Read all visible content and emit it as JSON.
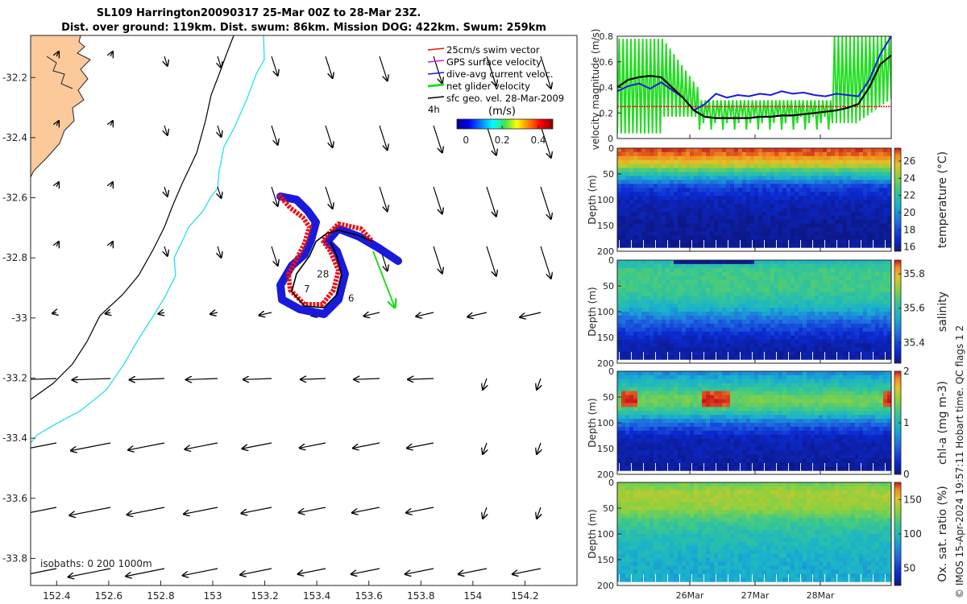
{
  "title": {
    "line1": "SL109 Harrington20090317 25-Mar 00Z to 28-Mar 23Z.",
    "line2": "Dist. over ground: 119km. Dist. swum: 86km. Mission DOG: 422km. Swum: 259km"
  },
  "colors": {
    "land": "#fbc99a",
    "blue_track": "#1a1adb",
    "red_track": "#ee1111",
    "isobath_200": "#35e0ea",
    "green": "#22dd22"
  },
  "chart_data": [
    {
      "type": "quiver-map",
      "name": "map",
      "xlabels": [
        "152.4",
        "152.6",
        "152.8",
        "153",
        "153.2",
        "153.4",
        "153.6",
        "153.8",
        "154",
        "154.2"
      ],
      "xticks": [
        152.4,
        152.6,
        152.8,
        153.0,
        153.2,
        153.4,
        153.6,
        153.8,
        154.0,
        154.2
      ],
      "ylabels": [
        "-32.2",
        "-32.4",
        "-32.6",
        "-32.8",
        "-33",
        "-33.2",
        "-33.4",
        "-33.6",
        "-33.8"
      ],
      "yticks": [
        -32.2,
        -32.4,
        -32.6,
        -32.8,
        -33.0,
        -33.2,
        -33.4,
        -33.6,
        -33.8
      ],
      "xlim": [
        152.3,
        154.4
      ],
      "ylim": [
        -33.89,
        -32.06
      ],
      "isobath_label": "isobaths: 0   200  1000m",
      "track_labels": [
        {
          "text": "28",
          "lon": 153.4,
          "lat": -32.865
        },
        {
          "text": "7",
          "lon": 153.35,
          "lat": -32.915
        },
        {
          "text": "6",
          "lon": 153.52,
          "lat": -32.945
        }
      ],
      "legend": [
        {
          "label": "25cm/s swim vector",
          "color": "#ee1111"
        },
        {
          "label": "GPS surface velocity",
          "color": "#cc22cc"
        },
        {
          "label": "dive-avg current veloc.",
          "color": "#1a1adb"
        },
        {
          "label": "net glider velocity",
          "color": "#22dd22"
        },
        {
          "label": "sfc geo. vel. 28-Mar-2009",
          "color": "#000000"
        }
      ],
      "colorbar": {
        "title": "(m/s)",
        "time_label": "4h",
        "ticks": [
          "0",
          "0.2",
          "0.4"
        ],
        "range": [
          -0.05,
          0.48
        ]
      }
    },
    {
      "type": "line",
      "name": "velocity-panel",
      "ylabel": "velocity magnitude (m/s)",
      "ylim": [
        0,
        0.8
      ],
      "yticks": [
        "0",
        "0.2",
        "0.4",
        "0.6",
        "0.8"
      ],
      "x": [
        0,
        0.04,
        0.08,
        0.12,
        0.16,
        0.2,
        0.24,
        0.28,
        0.32,
        0.36,
        0.4,
        0.44,
        0.48,
        0.52,
        0.56,
        0.6,
        0.64,
        0.68,
        0.72,
        0.76,
        0.8,
        0.84,
        0.88,
        0.92,
        0.96,
        1.0
      ],
      "series": [
        {
          "name": "dive-avg current",
          "color": "#1a1adb",
          "values": [
            0.37,
            0.41,
            0.43,
            0.39,
            0.44,
            0.38,
            0.32,
            0.22,
            0.27,
            0.35,
            0.32,
            0.34,
            0.33,
            0.35,
            0.34,
            0.37,
            0.35,
            0.36,
            0.34,
            0.33,
            0.35,
            0.34,
            0.33,
            0.46,
            0.66,
            0.8
          ]
        },
        {
          "name": "net glider",
          "color": "#000000",
          "values": [
            0.4,
            0.46,
            0.48,
            0.49,
            0.48,
            0.4,
            0.32,
            0.22,
            0.17,
            0.16,
            0.16,
            0.16,
            0.16,
            0.17,
            0.17,
            0.18,
            0.18,
            0.19,
            0.2,
            0.21,
            0.22,
            0.24,
            0.27,
            0.4,
            0.58,
            0.65
          ]
        },
        {
          "name": "swim reference",
          "color": "#ee1111",
          "values": [
            0.25,
            0.25,
            0.25,
            0.25,
            0.25,
            0.25,
            0.25,
            0.25,
            0.25,
            0.25,
            0.25,
            0.25,
            0.25,
            0.25,
            0.25,
            0.25,
            0.25,
            0.25,
            0.25,
            0.25,
            0.25,
            0.25,
            0.25,
            0.25,
            0.25,
            0.25
          ]
        }
      ]
    },
    {
      "type": "heatmap",
      "name": "temperature-section",
      "variable": "temperature (°C)",
      "ylabel": "Depth (m)",
      "ylim": [
        200,
        0
      ],
      "yticks": [
        "0",
        "50",
        "100",
        "150",
        "200"
      ],
      "colorbar_ticks": [
        "16",
        "18",
        "20",
        "22",
        "24",
        "26"
      ],
      "colorbar_range": [
        15.5,
        27.5
      ],
      "profile_by_depth": [
        [
          0,
          26.5
        ],
        [
          20,
          25.5
        ],
        [
          35,
          23.5
        ],
        [
          45,
          21.5
        ],
        [
          60,
          19.5
        ],
        [
          75,
          17.5
        ],
        [
          100,
          16.5
        ],
        [
          150,
          15.8
        ],
        [
          200,
          15.6
        ]
      ]
    },
    {
      "type": "heatmap",
      "name": "salinity-section",
      "variable": "salinity",
      "ylabel": "Depth (m)",
      "ylim": [
        200,
        0
      ],
      "yticks": [
        "0",
        "50",
        "100",
        "150",
        "200"
      ],
      "colorbar_ticks": [
        "35.4",
        "35.6",
        "35.8"
      ],
      "colorbar_range": [
        35.28,
        35.88
      ],
      "profile_by_depth": [
        [
          0,
          35.52
        ],
        [
          20,
          35.58
        ],
        [
          60,
          35.58
        ],
        [
          90,
          35.52
        ],
        [
          120,
          35.42
        ],
        [
          160,
          35.32
        ],
        [
          200,
          35.3
        ]
      ]
    },
    {
      "type": "heatmap",
      "name": "chl-section",
      "variable": "chl-a (mg m-3)",
      "ylabel": "Depth (m)",
      "ylim": [
        200,
        0
      ],
      "yticks": [
        "0",
        "50",
        "100",
        "150",
        "200"
      ],
      "colorbar_ticks": [
        "0",
        "1",
        "2"
      ],
      "colorbar_range": [
        0,
        2
      ],
      "profile_by_depth": [
        [
          0,
          0.6
        ],
        [
          30,
          0.9
        ],
        [
          55,
          1.2
        ],
        [
          75,
          1.0
        ],
        [
          100,
          0.5
        ],
        [
          130,
          0.15
        ],
        [
          200,
          0.05
        ]
      ]
    },
    {
      "type": "heatmap",
      "name": "oxygen-section",
      "variable": "Ox. sat. ratio (%)",
      "ylabel": "Depth (m)",
      "ylim": [
        200,
        0
      ],
      "yticks": [
        "0",
        "50",
        "100",
        "150",
        "200"
      ],
      "colorbar_ticks": [
        "50",
        "100",
        "150"
      ],
      "colorbar_range": [
        25,
        175
      ],
      "profile_by_depth": [
        [
          0,
          110
        ],
        [
          20,
          125
        ],
        [
          50,
          120
        ],
        [
          75,
          100
        ],
        [
          100,
          90
        ],
        [
          150,
          82
        ],
        [
          200,
          80
        ]
      ]
    }
  ],
  "time_axis": {
    "labels": [
      "26Mar",
      "27Mar",
      "28Mar"
    ]
  },
  "footer": {
    "credit": "© IMOS 15-Apr-2024 19:57:11 Hobart time. QC flags 1  2"
  }
}
